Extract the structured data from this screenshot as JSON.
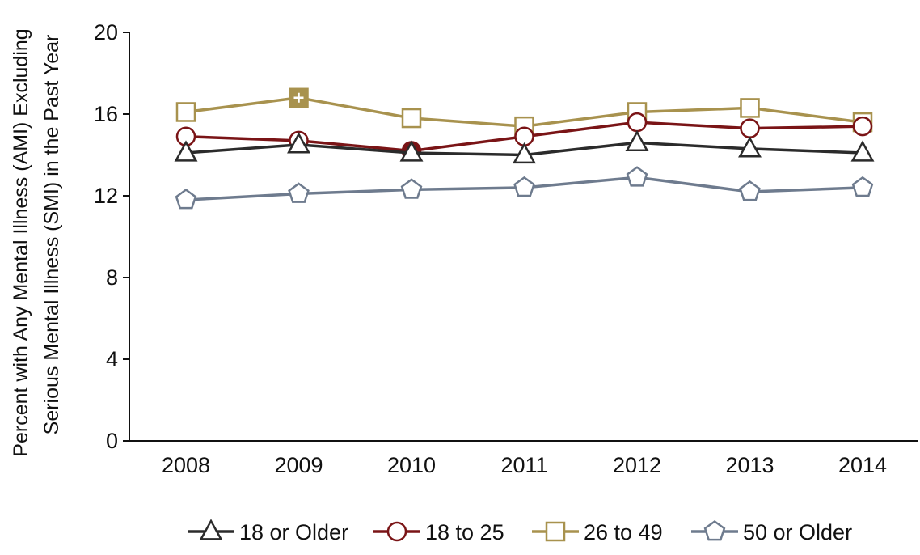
{
  "chart_data": {
    "type": "line",
    "categories": [
      "2008",
      "2009",
      "2010",
      "2011",
      "2012",
      "2013",
      "2014"
    ],
    "ylabel_lines": [
      "Percent with Any Mental Illness (AMI) Excluding",
      "Serious Mental Illness (SMI) in the Past Year"
    ],
    "ylim": [
      0,
      20
    ],
    "yticks": [
      0,
      4,
      8,
      12,
      16,
      20
    ],
    "grid": false,
    "legend_position": "bottom",
    "series": [
      {
        "name": "18 or Older",
        "marker": "triangle",
        "color": "#2b2b2b",
        "values": [
          14.1,
          14.5,
          14.1,
          14.0,
          14.6,
          14.3,
          14.1
        ],
        "significant": [
          false,
          false,
          false,
          false,
          false,
          false,
          false
        ]
      },
      {
        "name": "18 to 25",
        "marker": "circle",
        "color": "#7a1416",
        "values": [
          14.9,
          14.7,
          14.2,
          14.9,
          15.6,
          15.3,
          15.4
        ],
        "significant": [
          false,
          false,
          true,
          false,
          false,
          false,
          false
        ]
      },
      {
        "name": "26 to 49",
        "marker": "square",
        "color": "#a8924e",
        "values": [
          16.1,
          16.8,
          15.8,
          15.4,
          16.1,
          16.3,
          15.6
        ],
        "significant": [
          false,
          true,
          false,
          false,
          false,
          false,
          false
        ]
      },
      {
        "name": "50 or Older",
        "marker": "pentagon",
        "color": "#6e7b8e",
        "values": [
          11.8,
          12.1,
          12.3,
          12.4,
          12.9,
          12.2,
          12.4
        ],
        "significant": [
          false,
          false,
          false,
          false,
          false,
          false,
          false
        ]
      }
    ]
  }
}
